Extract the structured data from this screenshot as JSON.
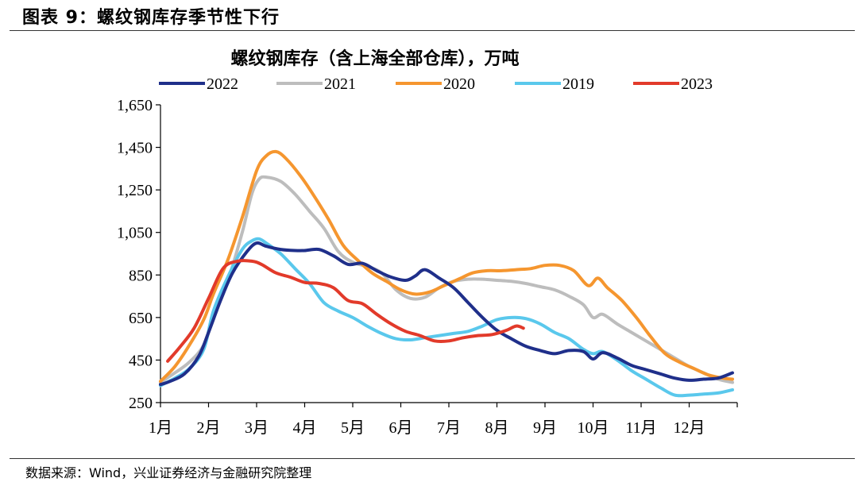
{
  "figure": {
    "title": "图表 9：螺纹钢库存季节性下行",
    "source": "数据来源：Wind，兴业证券经济与金融研究院整理"
  },
  "chart_data": {
    "type": "line",
    "title": "螺纹钢库存（含上海全部仓库），万吨",
    "xlabel": "",
    "ylabel": "",
    "ylim": [
      250,
      1650
    ],
    "yticks": [
      "1,650",
      "1,450",
      "1,250",
      "1,050",
      "850",
      "650",
      "450",
      "250"
    ],
    "ytick_values": [
      1650,
      1450,
      1250,
      1050,
      850,
      650,
      450,
      250
    ],
    "xlim": [
      1,
      13
    ],
    "categories": [
      "1月",
      "2月",
      "3月",
      "4月",
      "5月",
      "6月",
      "7月",
      "8月",
      "9月",
      "10月",
      "11月",
      "12月"
    ],
    "legend": "top",
    "grid": false,
    "series": [
      {
        "name": "2022",
        "color": "#1f2f8a",
        "x": [
          1.0,
          1.2,
          1.5,
          1.8,
          2.0,
          2.25,
          2.5,
          2.8,
          3.0,
          3.2,
          3.5,
          3.8,
          4.0,
          4.3,
          4.6,
          4.9,
          5.2,
          5.5,
          5.8,
          6.1,
          6.3,
          6.5,
          6.8,
          7.1,
          7.4,
          7.7,
          8.0,
          8.3,
          8.6,
          8.9,
          9.2,
          9.5,
          9.8,
          10.0,
          10.2,
          10.5,
          10.8,
          11.1,
          11.4,
          11.7,
          12.0,
          12.3,
          12.6,
          12.9
        ],
        "y": [
          335,
          350,
          385,
          470,
          580,
          730,
          860,
          960,
          1000,
          985,
          970,
          965,
          965,
          970,
          940,
          900,
          905,
          870,
          840,
          825,
          845,
          875,
          835,
          790,
          720,
          650,
          590,
          550,
          515,
          495,
          480,
          495,
          490,
          455,
          485,
          460,
          425,
          405,
          385,
          365,
          355,
          360,
          365,
          390
        ]
      },
      {
        "name": "2021",
        "color": "#bdbdbd",
        "x": [
          1.0,
          1.3,
          1.6,
          1.9,
          2.1,
          2.4,
          2.7,
          2.9,
          3.05,
          3.2,
          3.5,
          3.8,
          4.1,
          4.4,
          4.7,
          5.0,
          5.3,
          5.6,
          5.9,
          6.2,
          6.5,
          6.8,
          7.1,
          7.4,
          7.7,
          8.0,
          8.3,
          8.6,
          8.9,
          9.2,
          9.5,
          9.8,
          10.0,
          10.2,
          10.5,
          10.8,
          11.1,
          11.4,
          11.7,
          12.0,
          12.3,
          12.6,
          12.9
        ],
        "y": [
          345,
          390,
          440,
          520,
          650,
          820,
          1050,
          1230,
          1300,
          1310,
          1290,
          1230,
          1150,
          1070,
          960,
          910,
          890,
          860,
          780,
          740,
          745,
          790,
          820,
          830,
          830,
          825,
          820,
          810,
          795,
          780,
          750,
          710,
          650,
          665,
          620,
          580,
          540,
          500,
          460,
          420,
          390,
          360,
          345
        ]
      },
      {
        "name": "2020",
        "color": "#f5962f",
        "x": [
          1.0,
          1.3,
          1.6,
          1.9,
          2.1,
          2.4,
          2.7,
          3.0,
          3.2,
          3.4,
          3.6,
          3.9,
          4.2,
          4.5,
          4.8,
          5.1,
          5.4,
          5.7,
          6.0,
          6.3,
          6.6,
          6.9,
          7.2,
          7.5,
          7.8,
          8.1,
          8.4,
          8.7,
          9.0,
          9.3,
          9.6,
          9.9,
          10.1,
          10.3,
          10.6,
          10.9,
          11.2,
          11.5,
          11.8,
          12.1,
          12.4,
          12.7,
          12.9
        ],
        "y": [
          350,
          420,
          520,
          640,
          760,
          920,
          1120,
          1340,
          1410,
          1430,
          1400,
          1320,
          1220,
          1110,
          990,
          920,
          860,
          820,
          780,
          760,
          770,
          800,
          830,
          860,
          870,
          870,
          875,
          880,
          895,
          895,
          870,
          800,
          835,
          790,
          730,
          650,
          560,
          480,
          440,
          410,
          380,
          365,
          360
        ]
      },
      {
        "name": "2019",
        "color": "#5ac8ec",
        "x": [
          1.0,
          1.3,
          1.6,
          1.9,
          2.1,
          2.4,
          2.7,
          2.9,
          3.05,
          3.2,
          3.5,
          3.8,
          4.1,
          4.4,
          4.7,
          5.0,
          5.3,
          5.6,
          5.9,
          6.2,
          6.5,
          6.8,
          7.1,
          7.4,
          7.7,
          8.0,
          8.3,
          8.6,
          8.9,
          9.2,
          9.5,
          9.8,
          10.0,
          10.2,
          10.5,
          10.8,
          11.1,
          11.4,
          11.7,
          12.0,
          12.3,
          12.6,
          12.9
        ],
        "y": [
          330,
          365,
          410,
          500,
          680,
          840,
          970,
          1010,
          1020,
          1000,
          950,
          880,
          810,
          720,
          680,
          650,
          610,
          575,
          550,
          545,
          555,
          565,
          575,
          585,
          610,
          640,
          650,
          645,
          620,
          580,
          550,
          500,
          480,
          490,
          450,
          400,
          360,
          320,
          285,
          285,
          290,
          295,
          310
        ]
      },
      {
        "name": "2023",
        "color": "#e23a2a",
        "x": [
          1.15,
          1.4,
          1.7,
          2.0,
          2.3,
          2.6,
          2.9,
          3.1,
          3.4,
          3.7,
          4.0,
          4.3,
          4.6,
          4.9,
          5.2,
          5.5,
          5.8,
          6.1,
          6.4,
          6.7,
          7.0,
          7.3,
          7.6,
          7.9,
          8.2,
          8.4,
          8.55
        ],
        "y": [
          445,
          510,
          600,
          740,
          880,
          915,
          915,
          900,
          860,
          840,
          815,
          810,
          790,
          730,
          715,
          665,
          620,
          585,
          565,
          540,
          540,
          555,
          565,
          570,
          590,
          610,
          600
        ]
      }
    ]
  }
}
